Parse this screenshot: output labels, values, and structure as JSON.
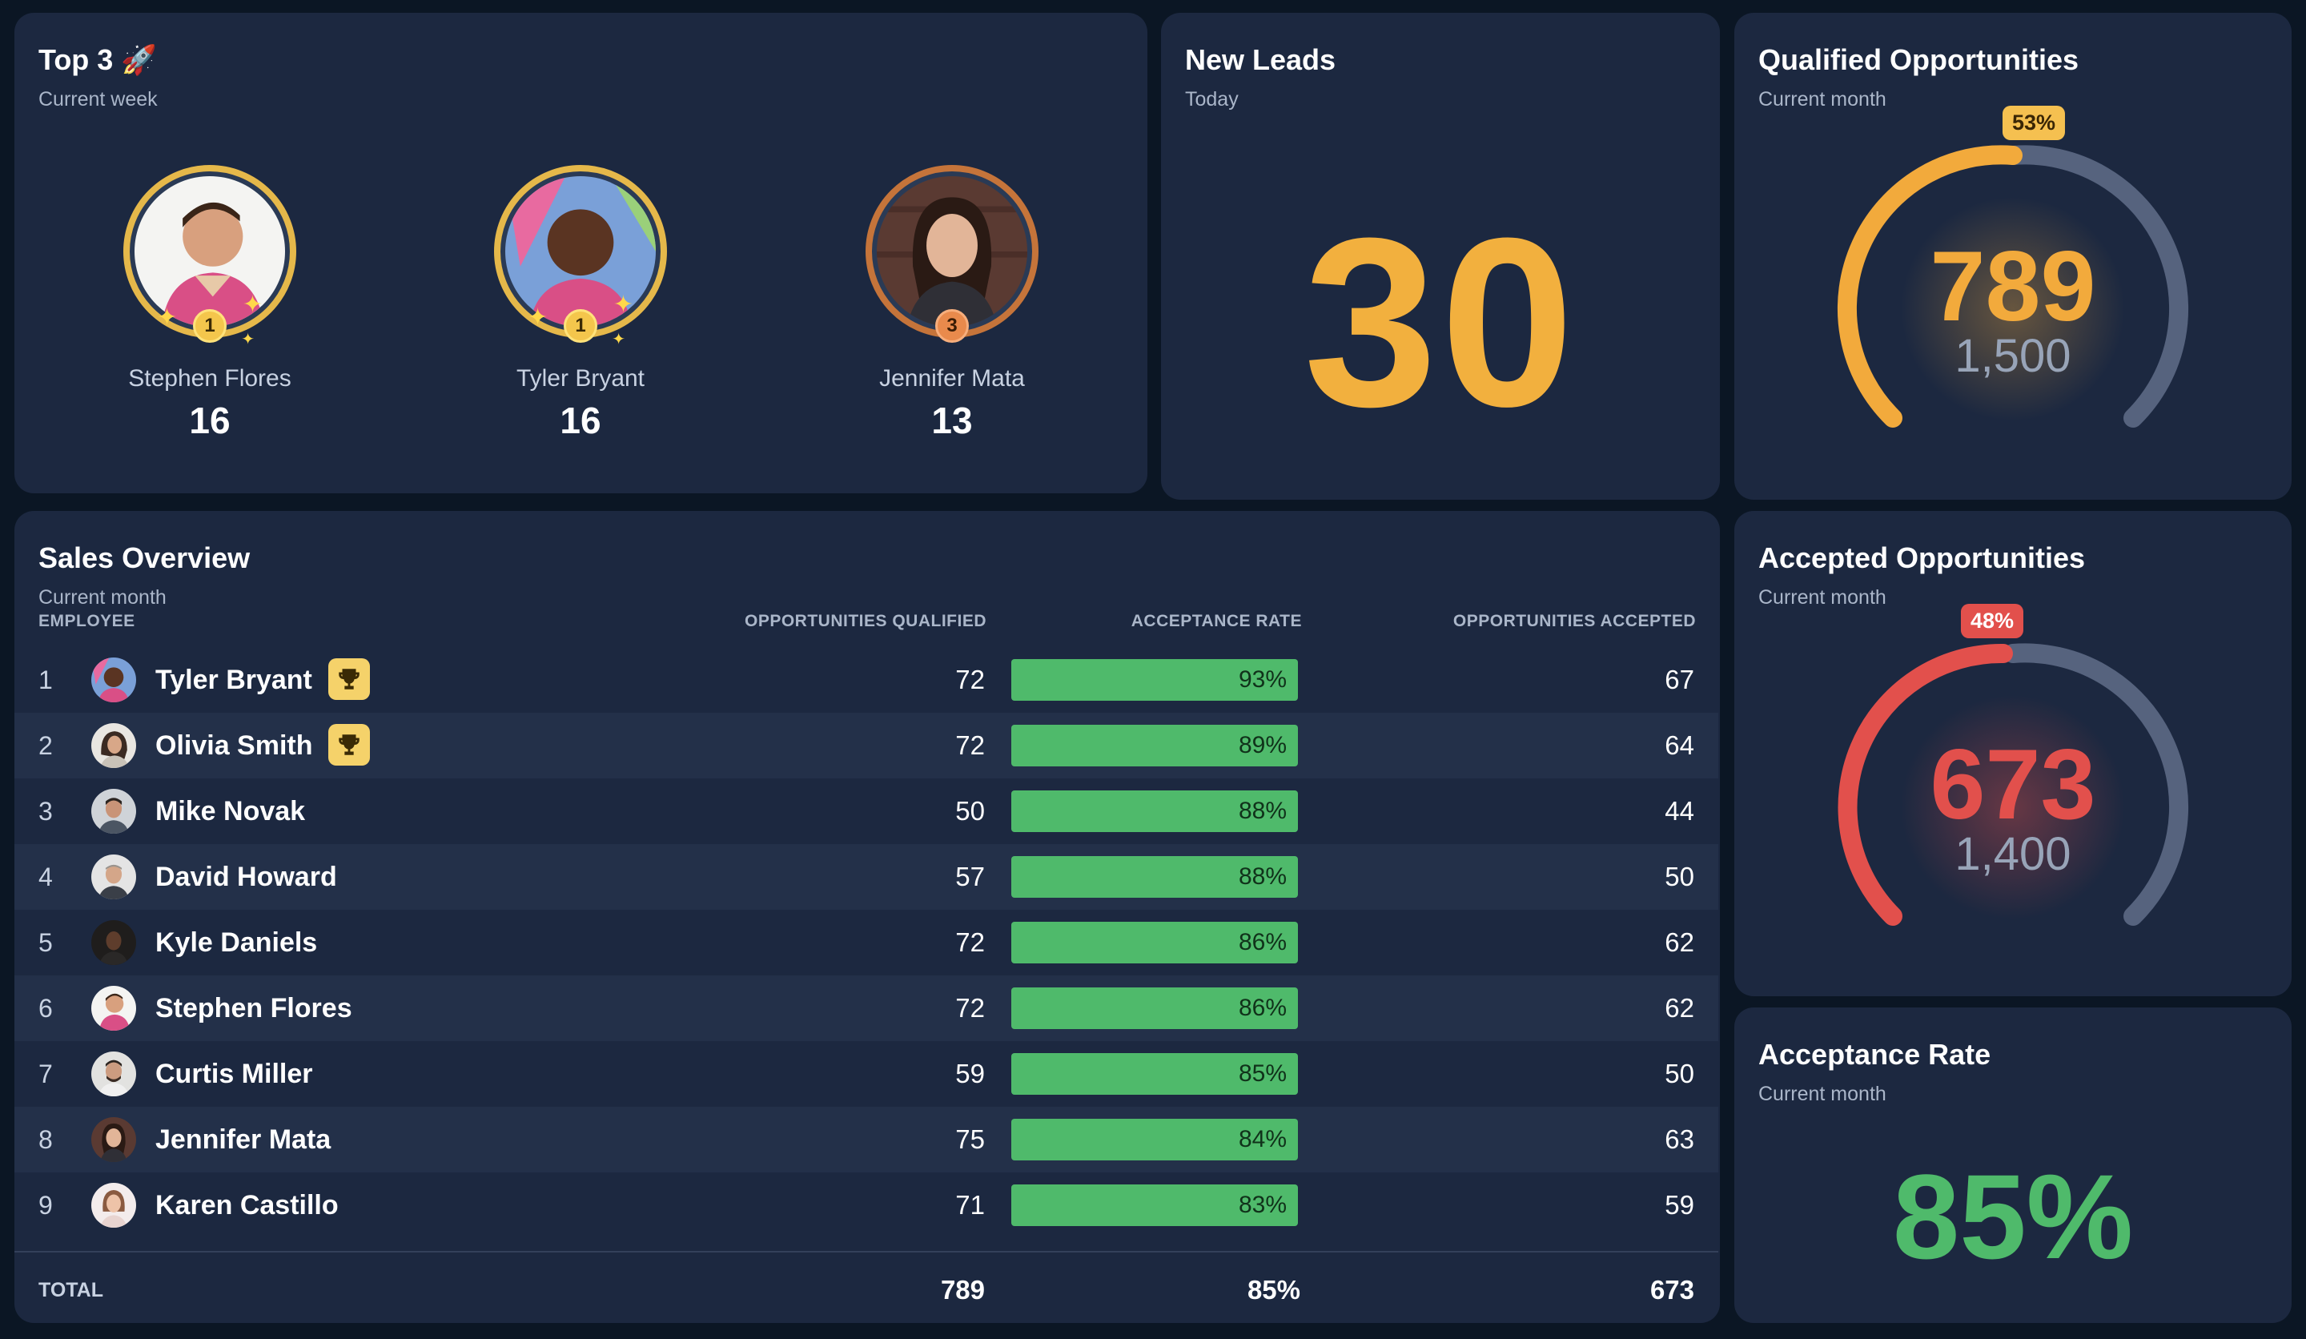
{
  "top3": {
    "title": "Top 3 🚀",
    "subtitle": "Current week",
    "podium": [
      {
        "rank": "1",
        "name": "Stephen Flores",
        "score": "16"
      },
      {
        "rank": "1",
        "name": "Tyler Bryant",
        "score": "16"
      },
      {
        "rank": "3",
        "name": "Jennifer Mata",
        "score": "13"
      }
    ]
  },
  "new_leads": {
    "title": "New Leads",
    "subtitle": "Today",
    "value": "30"
  },
  "qualified": {
    "title": "Qualified Opportunities",
    "subtitle": "Current month",
    "value": "789",
    "target": "1,500",
    "percent_label": "53%",
    "percent": 0.53
  },
  "accepted": {
    "title": "Accepted Opportunities",
    "subtitle": "Current month",
    "value": "673",
    "target": "1,400",
    "percent_label": "48%",
    "percent": 0.48
  },
  "acceptance_rate": {
    "title": "Acceptance Rate",
    "subtitle": "Current month",
    "value": "85%"
  },
  "sales": {
    "title": "Sales Overview",
    "subtitle": "Current month",
    "headers": {
      "employee": "EMPLOYEE",
      "qualified": "OPPORTUNITIES QUALIFIED",
      "rate": "ACCEPTANCE RATE",
      "accepted": "OPPORTUNITIES ACCEPTED"
    },
    "rows": [
      {
        "rank": "1",
        "name": "Tyler Bryant",
        "qualified": "72",
        "rate": "93%",
        "accepted": "67",
        "trophy": true
      },
      {
        "rank": "2",
        "name": "Olivia Smith",
        "qualified": "72",
        "rate": "89%",
        "accepted": "64",
        "trophy": true
      },
      {
        "rank": "3",
        "name": "Mike Novak",
        "qualified": "50",
        "rate": "88%",
        "accepted": "44",
        "trophy": false
      },
      {
        "rank": "4",
        "name": "David Howard",
        "qualified": "57",
        "rate": "88%",
        "accepted": "50",
        "trophy": false
      },
      {
        "rank": "5",
        "name": "Kyle Daniels",
        "qualified": "72",
        "rate": "86%",
        "accepted": "62",
        "trophy": false
      },
      {
        "rank": "6",
        "name": "Stephen Flores",
        "qualified": "72",
        "rate": "86%",
        "accepted": "62",
        "trophy": false
      },
      {
        "rank": "7",
        "name": "Curtis Miller",
        "qualified": "59",
        "rate": "85%",
        "accepted": "50",
        "trophy": false
      },
      {
        "rank": "8",
        "name": "Jennifer Mata",
        "qualified": "75",
        "rate": "84%",
        "accepted": "63",
        "trophy": false
      },
      {
        "rank": "9",
        "name": "Karen Castillo",
        "qualified": "71",
        "rate": "83%",
        "accepted": "59",
        "trophy": false
      }
    ],
    "total": {
      "label": "TOTAL",
      "qualified": "789",
      "rate": "85%",
      "accepted": "673"
    }
  },
  "colors": {
    "background": "#0b1624",
    "card": "#1c2840",
    "orange": "#f2aa3c",
    "red": "#e2504c",
    "green": "#4fba6b",
    "gauge_track": "#56637e"
  }
}
